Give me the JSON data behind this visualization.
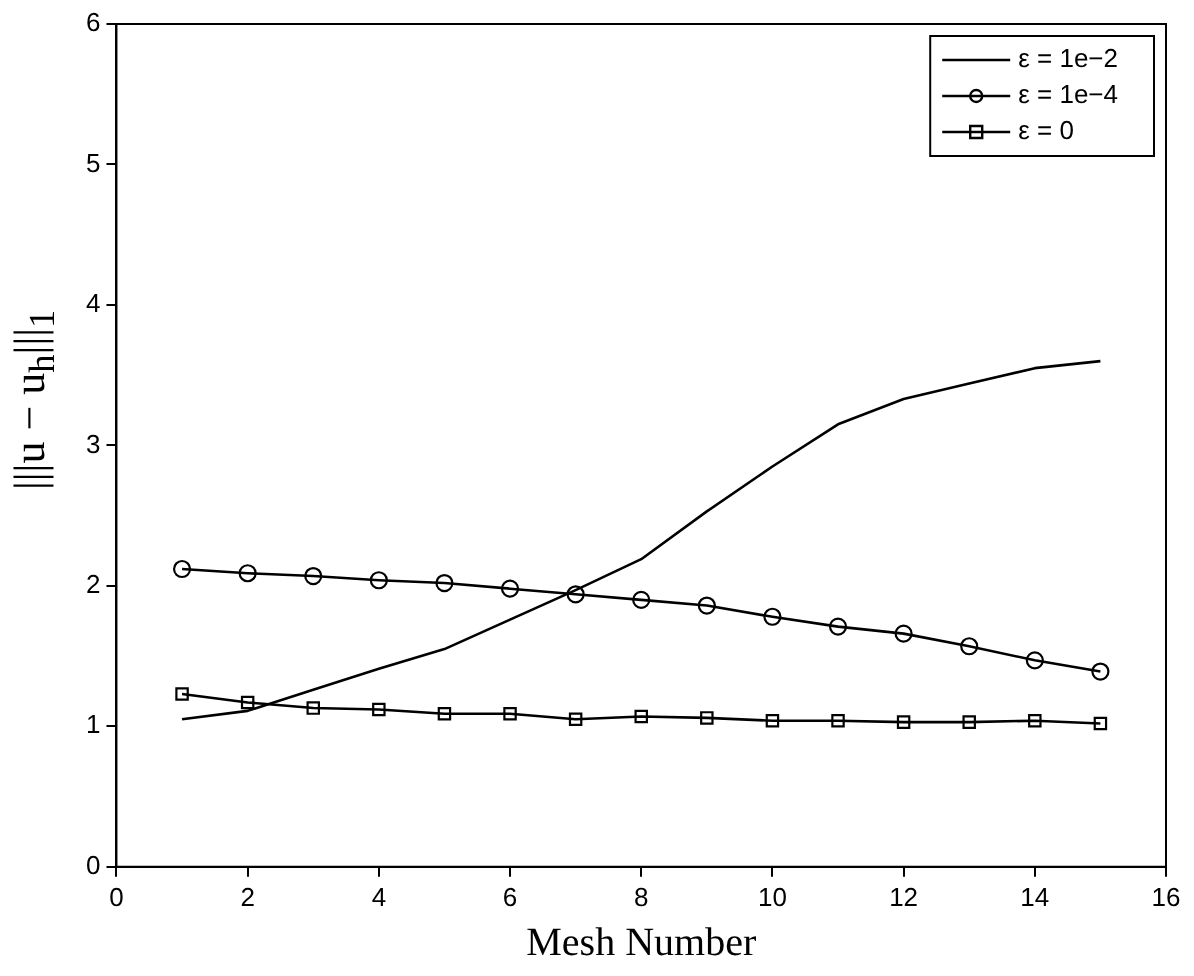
{
  "chart_data": {
    "type": "line",
    "xlabel": "Mesh Number",
    "ylabel": "|||u − u$_{h}$|||$_{1}$",
    "x": [
      1,
      2,
      3,
      4,
      5,
      6,
      7,
      8,
      9,
      10,
      11,
      12,
      13,
      14,
      15
    ],
    "series": [
      {
        "name": "ε = 1e−2",
        "color": "#000000",
        "marker": "none",
        "values": [
          1.05,
          1.11,
          1.26,
          1.41,
          1.55,
          1.76,
          1.97,
          2.19,
          2.53,
          2.85,
          3.15,
          3.33,
          3.44,
          3.55,
          3.6
        ]
      },
      {
        "name": "ε = 1e−4",
        "color": "#000000",
        "marker": "circle",
        "values": [
          2.12,
          2.09,
          2.07,
          2.04,
          2.02,
          1.98,
          1.94,
          1.9,
          1.86,
          1.78,
          1.71,
          1.66,
          1.57,
          1.47,
          1.39
        ]
      },
      {
        "name": "ε = 0",
        "color": "#000000",
        "marker": "square",
        "values": [
          1.23,
          1.17,
          1.13,
          1.12,
          1.09,
          1.09,
          1.05,
          1.07,
          1.06,
          1.04,
          1.04,
          1.03,
          1.03,
          1.04,
          1.02
        ]
      }
    ],
    "xlim": [
      0,
      16
    ],
    "xticks": [
      0,
      2,
      4,
      6,
      8,
      10,
      12,
      14,
      16
    ],
    "ylim": [
      0,
      6
    ],
    "yticks": [
      0,
      1,
      2,
      3,
      4,
      5,
      6
    ],
    "grid": false,
    "legend": "top right",
    "line_style": "solid"
  }
}
